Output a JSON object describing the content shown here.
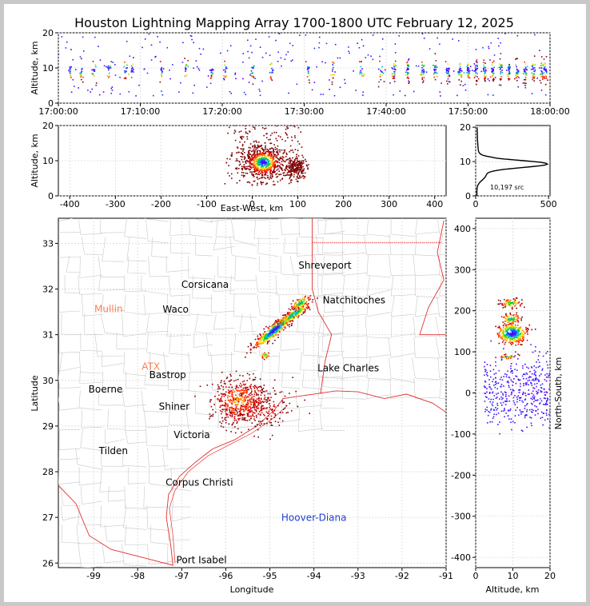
{
  "title": "Houston Lightning Mapping Array 1700-1800 UTC February 12, 2025",
  "time_panel": {
    "ylabel": "Altitude, km",
    "yticks": [
      0,
      10,
      20
    ],
    "xticks": [
      "17:00:00",
      "17:10:00",
      "17:20:00",
      "17:30:00",
      "17:40:00",
      "17:50:00",
      "18:00:00"
    ]
  },
  "ew_panel": {
    "ylabel": "Altitude, km",
    "xlabel": "East-West, km",
    "yticks": [
      0,
      10,
      20
    ],
    "xticks": [
      -400,
      -300,
      -200,
      -100,
      0,
      100,
      200,
      300,
      400
    ]
  },
  "hist_panel": {
    "xticks": [
      0,
      500
    ],
    "yticks": [
      0,
      10,
      20
    ],
    "count_label": "10,197 src"
  },
  "map_panel": {
    "xlabel": "Longitude",
    "ylabel": "Latitude",
    "xticks": [
      -99,
      -98,
      -97,
      -96,
      -95,
      -94,
      -93,
      -92,
      -91
    ],
    "yticks": [
      26,
      27,
      28,
      29,
      30,
      31,
      32,
      33
    ],
    "cities": [
      {
        "name": "Shreveport",
        "lon": -93.75,
        "lat": 32.52,
        "color": "#000000"
      },
      {
        "name": "Corsicana",
        "lon": -96.47,
        "lat": 32.1,
        "color": "#000000"
      },
      {
        "name": "Natchitoches",
        "lon": -93.09,
        "lat": 31.76,
        "color": "#000000"
      },
      {
        "name": "Mullin",
        "lon": -98.66,
        "lat": 31.56,
        "color": "#ff7f50"
      },
      {
        "name": "Waco",
        "lon": -97.14,
        "lat": 31.55,
        "color": "#000000"
      },
      {
        "name": "Lake Charles",
        "lon": -93.22,
        "lat": 30.27,
        "color": "#000000"
      },
      {
        "name": "Bastrop",
        "lon": -97.32,
        "lat": 30.12,
        "color": "#000000"
      },
      {
        "name": "ATX",
        "lon": -97.7,
        "lat": 30.3,
        "color": "#ff7f50"
      },
      {
        "name": "Boerne",
        "lon": -98.73,
        "lat": 29.8,
        "color": "#000000"
      },
      {
        "name": "Shiner",
        "lon": -97.17,
        "lat": 29.43,
        "color": "#000000"
      },
      {
        "name": "Victoria",
        "lon": -96.77,
        "lat": 28.81,
        "color": "#000000"
      },
      {
        "name": "Tilden",
        "lon": -98.55,
        "lat": 28.46,
        "color": "#000000"
      },
      {
        "name": "Corpus Christi",
        "lon": -96.6,
        "lat": 27.76,
        "color": "#000000"
      },
      {
        "name": "Hoover-Diana",
        "lon": -94.0,
        "lat": 26.99,
        "color": "#1f3fd0"
      },
      {
        "name": "Port Isabel",
        "lon": -96.55,
        "lat": 26.07,
        "color": "#000000"
      }
    ]
  },
  "ns_panel": {
    "xlabel": "Altitude, km",
    "ylabel": "North-South, km",
    "xticks": [
      0,
      10,
      20
    ],
    "yticks": [
      -400,
      -300,
      -200,
      -100,
      0,
      100,
      200,
      300,
      400
    ]
  }
}
